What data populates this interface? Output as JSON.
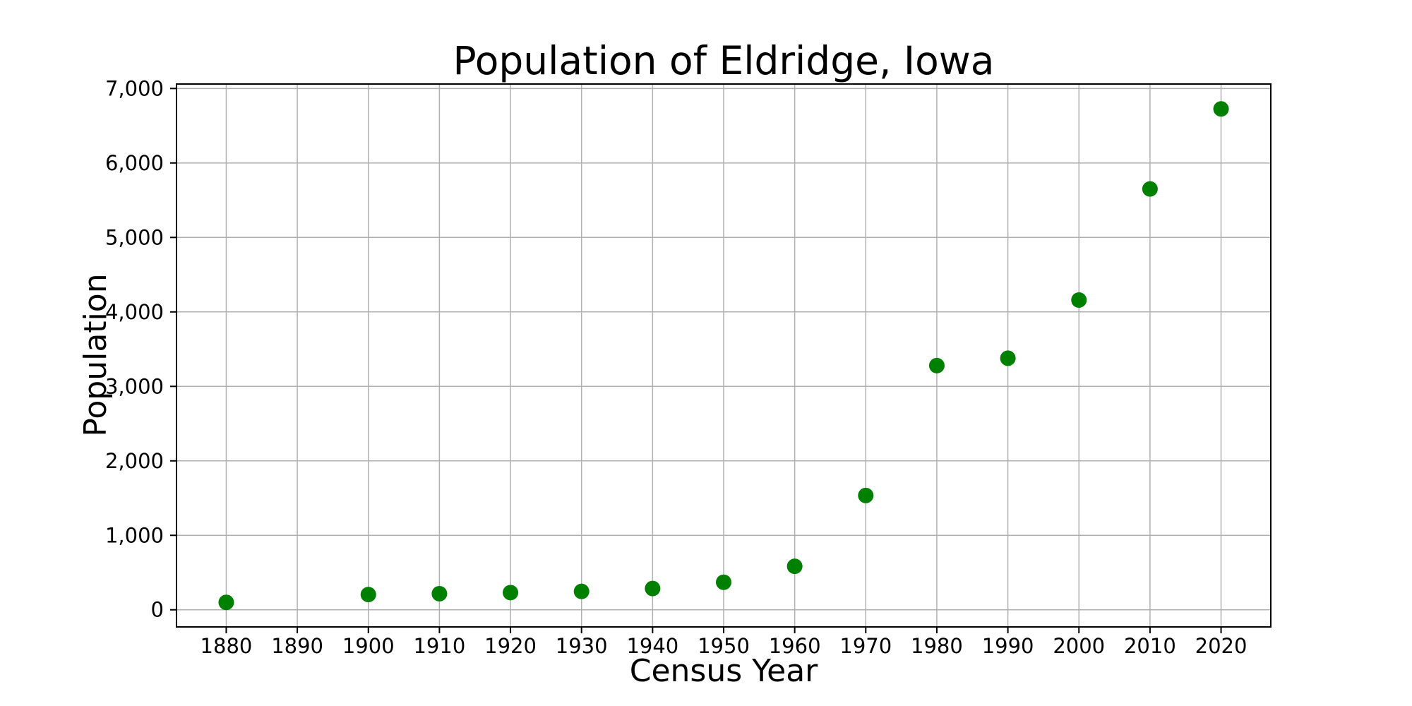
{
  "page": {
    "background": "#ffffff"
  },
  "chart_data": {
    "type": "scatter",
    "title": "Population of Eldridge, Iowa",
    "xlabel": "Census Year",
    "ylabel": "Population",
    "x": [
      1880,
      1900,
      1910,
      1920,
      1930,
      1940,
      1950,
      1960,
      1970,
      1980,
      1990,
      2000,
      2010,
      2020
    ],
    "y": [
      100,
      205,
      216,
      231,
      247,
      286,
      370,
      584,
      1535,
      3279,
      3378,
      4159,
      5651,
      6726
    ],
    "xlim": [
      1873,
      2027
    ],
    "ylim": [
      -230,
      7060
    ],
    "xticks": [
      1880,
      1890,
      1900,
      1910,
      1920,
      1930,
      1940,
      1950,
      1960,
      1970,
      1980,
      1990,
      2000,
      2010,
      2020
    ],
    "xtick_labels": [
      "1880",
      "1890",
      "1900",
      "1910",
      "1920",
      "1930",
      "1940",
      "1950",
      "1960",
      "1970",
      "1980",
      "1990",
      "2000",
      "2010",
      "2020"
    ],
    "yticks": [
      0,
      1000,
      2000,
      3000,
      4000,
      5000,
      6000,
      7000
    ],
    "ytick_labels": [
      "0",
      "1,000",
      "2,000",
      "3,000",
      "4,000",
      "5,000",
      "6,000",
      "7,000"
    ],
    "grid": true,
    "legend": null,
    "marker": {
      "shape": "circle",
      "color": "#008000",
      "radius": 11
    },
    "grid_color": "#b0b0b0",
    "axis_color": "#000000",
    "background": "#ffffff"
  }
}
